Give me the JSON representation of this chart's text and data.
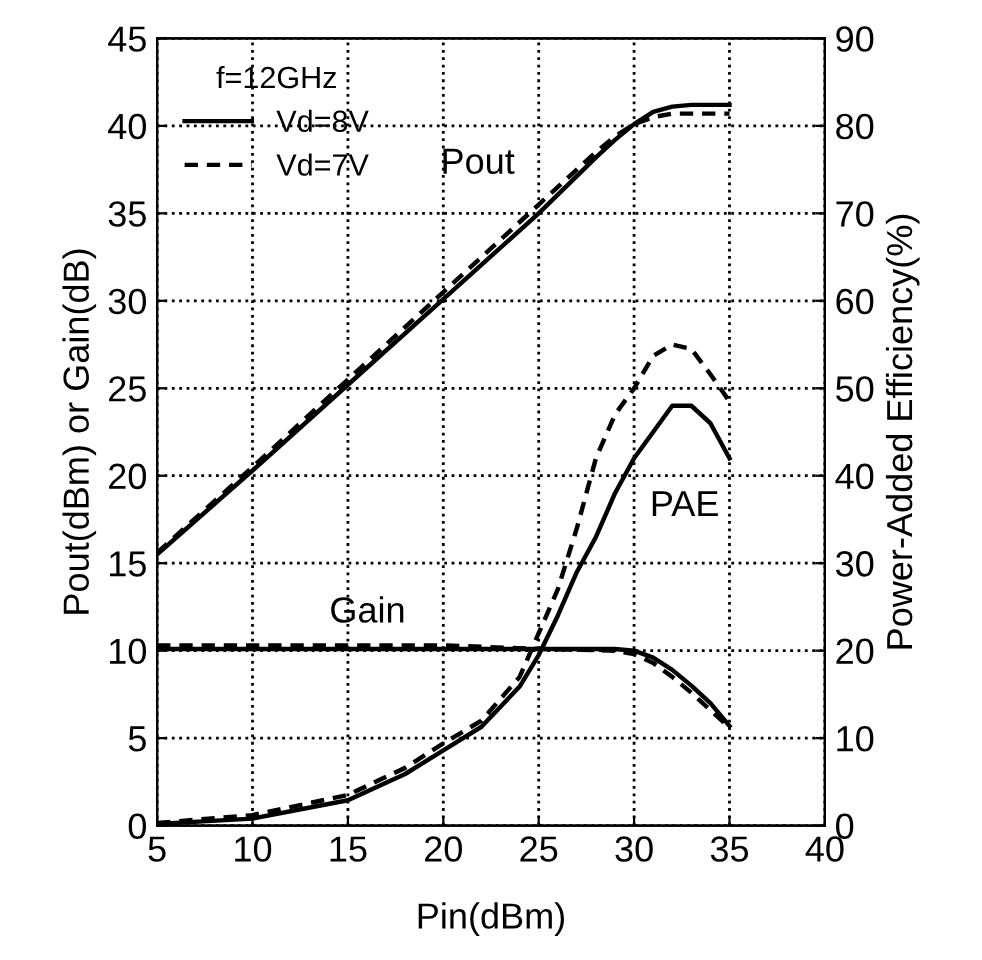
{
  "chart_data": {
    "type": "line",
    "xlabel": "Pin(dBm)",
    "ylabel": "Pout(dBm) or Gain(dB)",
    "y2label": "Power-Added Efficiency(%)",
    "xlim": [
      5,
      40
    ],
    "xticks": [
      5,
      10,
      15,
      20,
      25,
      30,
      35,
      40
    ],
    "ylim": [
      0,
      45
    ],
    "yticks": [
      0,
      5,
      10,
      15,
      20,
      25,
      30,
      35,
      40,
      45
    ],
    "y2lim": [
      0,
      90
    ],
    "y2ticks": [
      0,
      10,
      20,
      30,
      40,
      50,
      60,
      70,
      80,
      90
    ],
    "grid": true,
    "legend": "top left",
    "legend_title": "f=12GHz",
    "marker": "none",
    "series": [
      {
        "name": "Vd=8V",
        "color": "#000000",
        "line_style": "solid",
        "x": [
          5,
          10,
          15,
          20,
          25,
          28,
          29,
          30,
          31,
          32,
          33,
          35
        ],
        "values": [
          15.5,
          20.3,
          25.2,
          30.1,
          35,
          38.2,
          39.2,
          40.1,
          40.8,
          41.1,
          41.2,
          41.2
        ]
      },
      {
        "name": "Vd=7V",
        "color": "#000000",
        "line_style": "dashed",
        "x": [
          5,
          10,
          15,
          20,
          25,
          28,
          29,
          30,
          31,
          32,
          35
        ],
        "values": [
          15.6,
          20.5,
          25.5,
          30.5,
          35.5,
          38.5,
          39.4,
          40.1,
          40.5,
          40.7,
          40.7
        ]
      },
      {
        "color": "#000000",
        "line_style": "solid",
        "x": [
          5,
          10,
          15,
          20,
          25,
          29,
          30,
          31,
          32,
          33,
          34,
          35
        ],
        "values": [
          10.1,
          10.1,
          10.1,
          10.1,
          10.1,
          10.1,
          10.0,
          9.6,
          8.9,
          8.0,
          7.0,
          5.7
        ]
      },
      {
        "color": "#000000",
        "line_style": "dashed",
        "x": [
          5,
          10,
          15,
          20,
          25,
          29,
          30,
          31,
          32,
          33,
          34,
          35
        ],
        "values": [
          10.3,
          10.3,
          10.3,
          10.3,
          10.1,
          10.0,
          9.8,
          9.3,
          8.5,
          7.6,
          6.6,
          5.6
        ]
      },
      {
        "color": "#000000",
        "line_style": "solid",
        "axis": "y2",
        "x": [
          5,
          10,
          15,
          18,
          20,
          22,
          24,
          25,
          26,
          27,
          28,
          29,
          30,
          31,
          32,
          33,
          34,
          35
        ],
        "values": [
          0.2,
          0.8,
          2.9,
          5.9,
          8.6,
          11.3,
          15.9,
          19.5,
          24,
          29,
          33,
          38,
          42,
          45,
          48,
          48,
          46,
          42
        ]
      },
      {
        "color": "#000000",
        "line_style": "dashed",
        "axis": "y2",
        "x": [
          5,
          10,
          15,
          18,
          20,
          22,
          24,
          25,
          26,
          27,
          28,
          29,
          30,
          31,
          32,
          33,
          34,
          35
        ],
        "values": [
          0.3,
          1.2,
          3.5,
          6.6,
          9.4,
          12,
          17,
          22,
          27,
          34,
          42,
          47,
          50,
          53.7,
          55,
          54.5,
          51.6,
          48.5
        ]
      }
    ],
    "annotations": [
      "Pout",
      "PAE",
      "Gain"
    ]
  }
}
